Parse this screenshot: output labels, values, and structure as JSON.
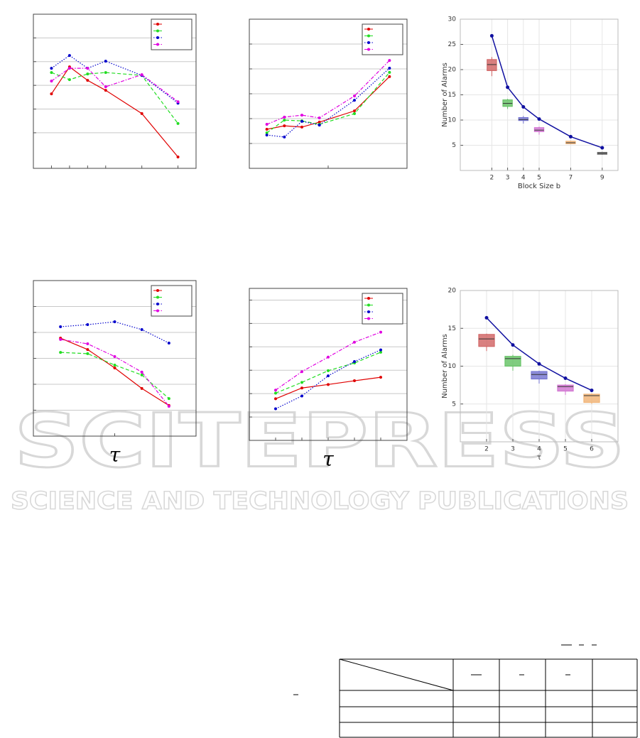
{
  "watermark": {
    "title": "SCITEPRESS",
    "subtitle": "SCIENCE AND TECHNOLOGY PUBLICATIONS"
  },
  "chart_data": [
    {
      "type": "line",
      "grid": "y",
      "tick_labels": false,
      "legend": "upper right",
      "x": [
        1,
        2,
        3,
        4,
        6,
        8
      ],
      "xlim": [
        0,
        9
      ],
      "xticks": [
        1,
        2,
        3,
        4,
        6,
        8
      ],
      "ylim": [
        0,
        6.5
      ],
      "yticks": [
        1.5,
        2.5,
        3.5,
        4.5,
        5.5
      ],
      "series": [
        {
          "color": "#e00000",
          "style": "solid",
          "values": [
            3.14,
            4.28,
            3.71,
            3.29,
            2.31,
            0.48
          ]
        },
        {
          "color": "#22dd22",
          "style": "dashed",
          "values": [
            4.04,
            3.74,
            3.98,
            4.04,
            3.92,
            1.89
          ]
        },
        {
          "color": "#0000cc",
          "style": "dotted",
          "values": [
            4.22,
            4.76,
            4.22,
            4.52,
            3.92,
            2.75
          ]
        },
        {
          "color": "#e000e0",
          "style": "dashdot",
          "values": [
            3.68,
            4.22,
            4.22,
            3.44,
            3.95,
            2.81
          ]
        }
      ]
    },
    {
      "type": "line",
      "grid": "y",
      "tick_labels": false,
      "legend": "upper right",
      "x": [
        1,
        2,
        3,
        4,
        6,
        8
      ],
      "xlim": [
        0,
        9
      ],
      "xticks": [
        4.5
      ],
      "ylim": [
        0,
        6
      ],
      "yticks": [
        1,
        2,
        3,
        4,
        5
      ],
      "series": [
        {
          "color": "#e00000",
          "style": "solid",
          "values": [
            1.57,
            1.71,
            1.66,
            1.86,
            2.31,
            3.69
          ]
        },
        {
          "color": "#22dd22",
          "style": "dashed",
          "values": [
            1.43,
            1.94,
            1.91,
            1.77,
            2.2,
            3.86
          ]
        },
        {
          "color": "#0000cc",
          "style": "dotted",
          "values": [
            1.34,
            1.26,
            1.89,
            1.74,
            2.74,
            4.03
          ]
        },
        {
          "color": "#e000e0",
          "style": "dashdot",
          "values": [
            1.77,
            2.06,
            2.14,
            2.03,
            2.91,
            4.34
          ]
        }
      ]
    },
    {
      "type": "box",
      "grid": "both",
      "tick_labels": true,
      "xlabel": "Block Size b",
      "ylabel": "Number of Alarms",
      "x": [
        2,
        3,
        4,
        5,
        7,
        9
      ],
      "xlim": [
        0,
        10
      ],
      "xticks": [
        2,
        3,
        4,
        5,
        7,
        9
      ],
      "ylim": [
        0,
        30
      ],
      "yticks": [
        5,
        10,
        15,
        20,
        25,
        30
      ],
      "series": [
        {
          "color": "#1010a0",
          "values": [
            26.7,
            16.5,
            12.6,
            10.2,
            6.7,
            4.5
          ]
        }
      ],
      "boxes": [
        {
          "color": "#d06060",
          "min": 18.7,
          "q1": 19.8,
          "median": 21,
          "q3": 22,
          "max": 22.5
        },
        {
          "color": "#60c060",
          "min": 12.2,
          "q1": 12.7,
          "median": 13.3,
          "q3": 14,
          "max": 14.2
        },
        {
          "color": "#7070d0",
          "min": 9.3,
          "q1": 9.9,
          "median": 10.1,
          "q3": 10.5,
          "max": 10.8
        },
        {
          "color": "#d070d0",
          "min": 7.1,
          "q1": 7.7,
          "median": 8,
          "q3": 8.5,
          "max": 8.7
        },
        {
          "color": "#f0b070",
          "min": 5.2,
          "q1": 5.3,
          "median": 5.5,
          "q3": 5.8,
          "max": 5.9
        },
        {
          "color": "#707070",
          "min": 3.1,
          "q1": 3.2,
          "median": 3.4,
          "q3": 3.6,
          "max": 3.7
        }
      ]
    },
    {
      "type": "line",
      "grid": "y",
      "tick_labels": false,
      "legend": "upper right",
      "xlabel": "τ",
      "x": [
        1,
        2,
        3,
        4,
        5
      ],
      "xlim": [
        0,
        6
      ],
      "xticks": [
        3
      ],
      "ylim": [
        0,
        6
      ],
      "yticks": [
        1,
        2,
        3,
        4,
        5
      ],
      "series": [
        {
          "color": "#e00000",
          "style": "solid",
          "values": [
            3.78,
            3.34,
            2.63,
            1.84,
            1.18
          ]
        },
        {
          "color": "#22dd22",
          "style": "dashed",
          "values": [
            3.23,
            3.18,
            2.74,
            2.36,
            1.45
          ]
        },
        {
          "color": "#0000cc",
          "style": "dotted",
          "values": [
            4.22,
            4.3,
            4.41,
            4.11,
            3.59
          ]
        },
        {
          "color": "#e000e0",
          "style": "dashdot",
          "values": [
            3.73,
            3.56,
            3.07,
            2.47,
            1.15
          ]
        }
      ]
    },
    {
      "type": "line",
      "grid": "y",
      "tick_labels": false,
      "legend": "upper right",
      "xlabel": "τ",
      "x": [
        1,
        2,
        3,
        4,
        5
      ],
      "xlim": [
        0,
        6
      ],
      "xticks": [
        1,
        2,
        3,
        4,
        5
      ],
      "ylim": [
        0,
        6.5
      ],
      "yticks": [
        1,
        2,
        3,
        4,
        5,
        6
      ],
      "series": [
        {
          "color": "#e00000",
          "style": "solid",
          "values": [
            1.78,
            2.24,
            2.39,
            2.55,
            2.7
          ]
        },
        {
          "color": "#22dd22",
          "style": "dashed",
          "values": [
            2.02,
            2.48,
            2.98,
            3.31,
            3.77
          ]
        },
        {
          "color": "#0000cc",
          "style": "dotted",
          "values": [
            1.35,
            1.9,
            2.76,
            3.37,
            3.87
          ]
        },
        {
          "color": "#e000e0",
          "style": "dashdot",
          "values": [
            2.15,
            2.94,
            3.56,
            4.2,
            4.63
          ]
        }
      ]
    },
    {
      "type": "box",
      "grid": "both",
      "tick_labels": true,
      "xlabel": "τ",
      "ylabel": "Number of Alarms",
      "x": [
        2,
        3,
        4,
        5,
        6
      ],
      "xlim": [
        1,
        7
      ],
      "xticks": [
        2,
        3,
        4,
        5,
        6
      ],
      "ylim": [
        0,
        20
      ],
      "yticks": [
        5,
        10,
        15,
        20
      ],
      "series": [
        {
          "color": "#1010a0",
          "values": [
            16.4,
            12.8,
            10.3,
            8.4,
            6.8
          ]
        }
      ],
      "boxes": [
        {
          "color": "#d06060",
          "min": 12,
          "q1": 12.6,
          "median": 13.6,
          "q3": 14.2,
          "max": 14.3
        },
        {
          "color": "#60c060",
          "min": 9.4,
          "q1": 10,
          "median": 11,
          "q3": 11.3,
          "max": 11.5
        },
        {
          "color": "#7070d0",
          "min": 7.7,
          "q1": 8.3,
          "median": 8.9,
          "q3": 9.3,
          "max": 9.4
        },
        {
          "color": "#d070d0",
          "min": 6.2,
          "q1": 6.7,
          "median": 7.3,
          "q3": 7.5,
          "max": 7.6
        },
        {
          "color": "#f0b070",
          "min": 5,
          "q1": 5.2,
          "median": 6.1,
          "q3": 6.3,
          "max": 6.4
        }
      ]
    }
  ]
}
